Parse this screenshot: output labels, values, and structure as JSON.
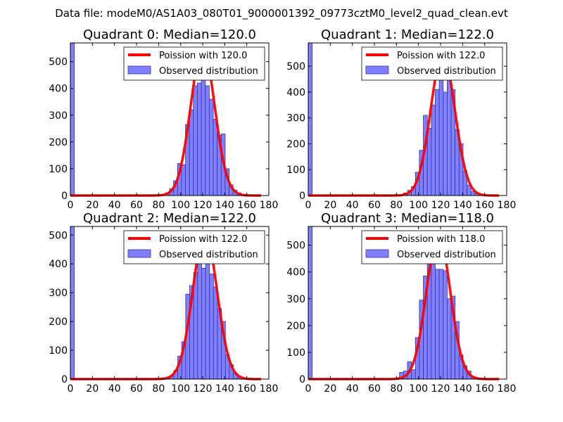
{
  "suptitle": "Data file: modeM0/AS1A03_080T01_9000001392_09773cztM0_level2_quad_clean.evt",
  "colors": {
    "bar_fill": "#7f7fff",
    "bar_edge": "#3333a0",
    "fit_line": "#ff0000"
  },
  "chart_data": [
    {
      "type": "bar",
      "title": "Quadrant 0: Median=120.0",
      "xlim": [
        0,
        180
      ],
      "ylim": [
        0,
        570
      ],
      "xticks": [
        "0",
        "20",
        "40",
        "60",
        "80",
        "100",
        "120",
        "140",
        "160",
        "180"
      ],
      "yticks": [
        "0",
        "100",
        "200",
        "300",
        "400",
        "500"
      ],
      "bin_width": 3.6,
      "bins_left": [
        0,
        79.2,
        82.8,
        86.4,
        90,
        93.6,
        97.2,
        100.8,
        104.4,
        108,
        111.6,
        115.2,
        118.8,
        122.4,
        126,
        129.6,
        133.2,
        136.8,
        140.4,
        144,
        147.6,
        151.2,
        154.8,
        158.4
      ],
      "values": [
        570,
        2,
        4,
        10,
        25,
        55,
        120,
        115,
        265,
        320,
        410,
        420,
        510,
        410,
        360,
        285,
        225,
        230,
        100,
        40,
        20,
        10,
        4,
        2
      ],
      "series": [
        {
          "name": "Poission with 120.0",
          "type": "line",
          "mu": 120.0,
          "scale": 549
        },
        {
          "name": "Observed distribution",
          "type": "bar"
        }
      ]
    },
    {
      "type": "bar",
      "title": "Quadrant 1: Median=122.0",
      "xlim": [
        0,
        180
      ],
      "ylim": [
        0,
        590
      ],
      "xticks": [
        "0",
        "20",
        "40",
        "60",
        "80",
        "100",
        "120",
        "140",
        "160",
        "180"
      ],
      "yticks": [
        "0",
        "100",
        "200",
        "300",
        "400",
        "500"
      ],
      "bin_width": 3.6,
      "bins_left": [
        0,
        79.2,
        82.8,
        86.4,
        90,
        93.6,
        97.2,
        100.8,
        104.4,
        108,
        111.6,
        115.2,
        118.8,
        122.4,
        126,
        129.6,
        133.2,
        136.8,
        140.4,
        144,
        147.6,
        151.2,
        154.8,
        158.4
      ],
      "values": [
        590,
        2,
        4,
        10,
        20,
        35,
        90,
        175,
        310,
        260,
        350,
        410,
        460,
        400,
        470,
        410,
        255,
        200,
        95,
        40,
        15,
        8,
        4,
        2
      ],
      "series": [
        {
          "name": "Poission with 122.0",
          "type": "line",
          "mu": 122.0,
          "scale": 545
        },
        {
          "name": "Observed distribution",
          "type": "bar"
        }
      ]
    },
    {
      "type": "bar",
      "title": "Quadrant 2: Median=122.0",
      "xlim": [
        0,
        180
      ],
      "ylim": [
        0,
        530
      ],
      "xticks": [
        "0",
        "20",
        "40",
        "60",
        "80",
        "100",
        "120",
        "140",
        "160",
        "180"
      ],
      "yticks": [
        "0",
        "100",
        "200",
        "300",
        "400",
        "500"
      ],
      "bin_width": 3.6,
      "bins_left": [
        0,
        83,
        86.6,
        90.2,
        93.8,
        97.4,
        101,
        104.6,
        108.2,
        111.8,
        115.4,
        119,
        122.6,
        126.2,
        129.8,
        133.4,
        137,
        140.6,
        144.2,
        147.8,
        151.4
      ],
      "values": [
        530,
        2,
        4,
        10,
        30,
        80,
        130,
        295,
        325,
        370,
        410,
        385,
        510,
        365,
        320,
        245,
        200,
        85,
        50,
        20,
        5
      ],
      "series": [
        {
          "name": "Poission with 122.0",
          "type": "line",
          "mu": 122.0,
          "scale": 506
        },
        {
          "name": "Observed distribution",
          "type": "bar"
        }
      ]
    },
    {
      "type": "bar",
      "title": "Quadrant 3: Median=118.0",
      "xlim": [
        0,
        180
      ],
      "ylim": [
        0,
        570
      ],
      "xticks": [
        "0",
        "20",
        "40",
        "60",
        "80",
        "100",
        "120",
        "140",
        "160",
        "180"
      ],
      "yticks": [
        "0",
        "100",
        "200",
        "300",
        "400",
        "500"
      ],
      "bin_width": 3.6,
      "bins_left": [
        0,
        79.2,
        82.8,
        86.4,
        90,
        93.6,
        97.2,
        100.8,
        104.4,
        108,
        111.6,
        115.2,
        118.8,
        122.4,
        126,
        129.6,
        133.2,
        136.8,
        140.4,
        144,
        147.6,
        151.2
      ],
      "values": [
        570,
        5,
        25,
        30,
        65,
        35,
        155,
        295,
        385,
        440,
        490,
        410,
        410,
        405,
        300,
        310,
        215,
        90,
        50,
        30,
        10,
        5
      ],
      "series": [
        {
          "name": "Poission with 118.0",
          "type": "line",
          "mu": 118.0,
          "scale": 539
        },
        {
          "name": "Observed distribution",
          "type": "bar"
        }
      ]
    }
  ]
}
